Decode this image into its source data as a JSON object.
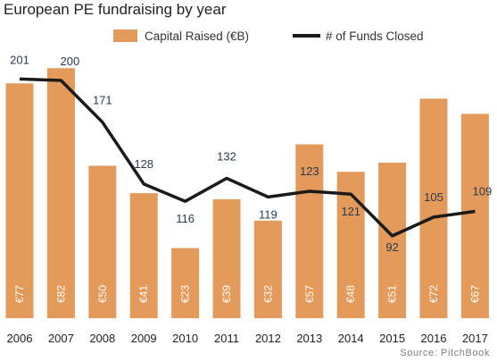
{
  "title": "European PE fundraising by year",
  "source": "Source: PitchBook",
  "chart_data": {
    "type": "bar",
    "title": "European PE fundraising by year",
    "categories": [
      "2006",
      "2007",
      "2008",
      "2009",
      "2010",
      "2011",
      "2012",
      "2013",
      "2014",
      "2015",
      "2016",
      "2017"
    ],
    "series": [
      {
        "name": "Capital Raised (€B)",
        "type": "bar",
        "color": "#E39A5B",
        "values": [
          77,
          82,
          50,
          41,
          23,
          39,
          32,
          57,
          48,
          51,
          72,
          67
        ],
        "labels": [
          "€77",
          "€82",
          "€50",
          "€41",
          "€23",
          "€39",
          "€32",
          "€57",
          "€48",
          "€51",
          "€72",
          "€67"
        ]
      },
      {
        "name": "# of Funds Closed",
        "type": "line",
        "color": "#1A1A1A",
        "values": [
          201,
          200,
          171,
          128,
          116,
          132,
          119,
          123,
          121,
          92,
          105,
          109
        ],
        "labels": [
          "201",
          "200",
          "171",
          "128",
          "116",
          "132",
          "119",
          "123",
          "121",
          "92",
          "105",
          "109"
        ]
      }
    ],
    "bar_axis_range": [
      0,
      85
    ],
    "line_axis_range": [
      0,
      250
    ],
    "grid": false,
    "legend_position": "top"
  }
}
